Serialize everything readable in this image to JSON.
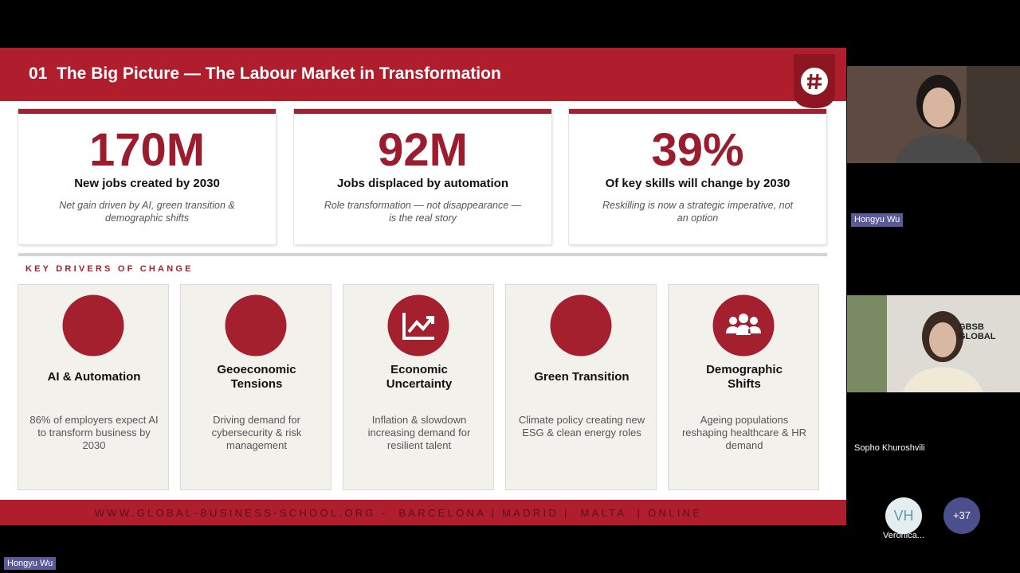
{
  "slide": {
    "title": "01  The Big Picture — The Labour Market in Transformation",
    "stats": [
      {
        "value": "170M",
        "label": "New jobs created by 2030",
        "note": "Net gain driven by AI, green transition & demographic shifts"
      },
      {
        "value": "92M",
        "label": "Jobs displaced by automation",
        "note": "Role transformation — not disappearance — is the real story"
      },
      {
        "value": "39%",
        "label": "Of key skills will change by 2030",
        "note": "Reskilling is now a strategic imperative, not an option"
      }
    ],
    "section_label": "KEY DRIVERS OF CHANGE",
    "drivers": [
      {
        "title": "AI & Automation",
        "description": "86% of employers expect AI to transform business by 2030"
      },
      {
        "title": "Geoeconomic Tensions",
        "description": "Driving demand for cybersecurity & risk management"
      },
      {
        "title": "Economic Uncertainty",
        "description": "Inflation & slowdown increasing demand for resilient talent"
      },
      {
        "title": "Green Transition",
        "description": "Climate policy creating new ESG & clean energy roles"
      },
      {
        "title": "Demographic Shifts",
        "description": "Ageing populations reshaping healthcare & HR demand"
      }
    ],
    "footer": "WWW.GLOBAL-BUSINESS-SCHOOL.ORG -  BARCELONA | MADRID |  MALTA  | ONLINE"
  },
  "participants": {
    "tiles": [
      {
        "name": "Hongyu Wu"
      },
      {
        "name": "Sopho Khuroshvili",
        "background_text": "GBSB GLOBAL"
      }
    ],
    "avatars": [
      {
        "initials": "VH",
        "name": "Veronica..."
      }
    ],
    "more": "+37",
    "self_label": "Hongyu Wu"
  }
}
